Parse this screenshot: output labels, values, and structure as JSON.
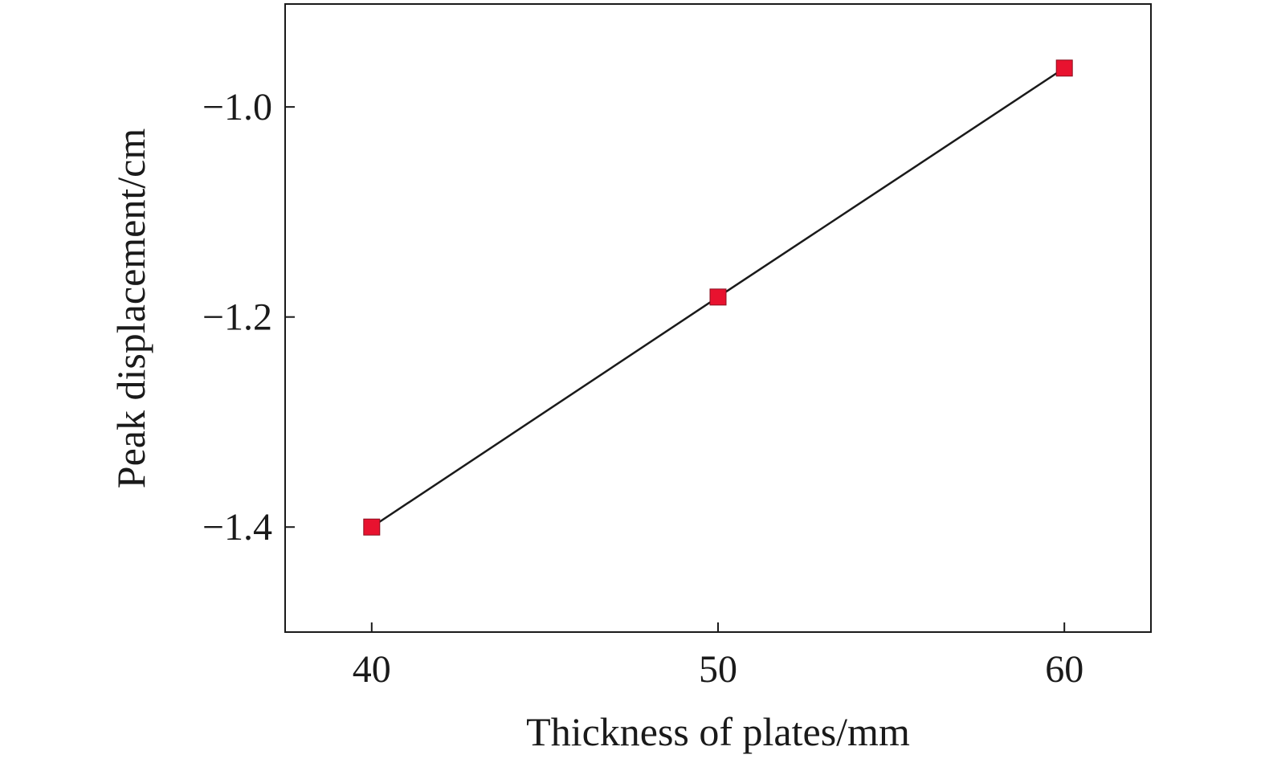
{
  "chart_data": {
    "type": "line",
    "title": "",
    "xlabel": "Thickness of plates/mm",
    "ylabel": "Peak displacement/cm",
    "x": [
      40,
      50,
      60
    ],
    "series": [
      {
        "name": "",
        "values": [
          -1.4,
          -1.181,
          -0.963
        ],
        "color": "#e8122f",
        "marker": "square"
      }
    ],
    "xlim": [
      37.5,
      62.5
    ],
    "ylim": [
      -1.5,
      -0.902
    ],
    "xticks": [
      40,
      50,
      60
    ],
    "xtick_labels": [
      "40",
      "50",
      "60"
    ],
    "yticks": [
      -1.4,
      -1.2,
      -1.0
    ],
    "ytick_labels": [
      "−1.4",
      "−1.2",
      "−1.0"
    ],
    "grid": false,
    "legend": "none",
    "line_color": "#1a1a1a"
  }
}
